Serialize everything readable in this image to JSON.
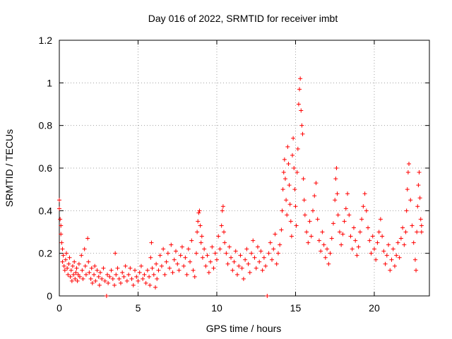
{
  "chart_data": {
    "type": "scatter",
    "title": "Day 016 of 2022, SRMTID for receiver imbt",
    "xlabel": "GPS time / hours",
    "ylabel": "SRMTID / TECUs",
    "xlim": [
      0,
      23.5
    ],
    "ylim": [
      0,
      1.2
    ],
    "xticks": [
      0,
      5,
      10,
      15,
      20
    ],
    "xtick_labels": [
      "0",
      "5",
      "10",
      "15",
      "20"
    ],
    "yticks": [
      0,
      0.2,
      0.4,
      0.6,
      0.8,
      1.0,
      1.2
    ],
    "ytick_labels": [
      "0",
      "0.2",
      "0.4",
      "0.6",
      "0.8",
      "1",
      "1.2"
    ],
    "grid": true,
    "marker": "+",
    "color": "#ff0000",
    "series": [
      {
        "name": "SRMTID",
        "points": [
          [
            0.0,
            0.45
          ],
          [
            0.0,
            0.41
          ],
          [
            0.05,
            0.36
          ],
          [
            0.1,
            0.33
          ],
          [
            0.1,
            0.29
          ],
          [
            0.15,
            0.25
          ],
          [
            0.2,
            0.22
          ],
          [
            0.2,
            0.16
          ],
          [
            0.25,
            0.19
          ],
          [
            0.3,
            0.14
          ],
          [
            0.35,
            0.12
          ],
          [
            0.4,
            0.17
          ],
          [
            0.45,
            0.2
          ],
          [
            0.5,
            0.13
          ],
          [
            0.55,
            0.1
          ],
          [
            0.6,
            0.15
          ],
          [
            0.65,
            0.18
          ],
          [
            0.7,
            0.09
          ],
          [
            0.75,
            0.12
          ],
          [
            0.8,
            0.07
          ],
          [
            0.85,
            0.14
          ],
          [
            0.9,
            0.1
          ],
          [
            0.95,
            0.16
          ],
          [
            1.0,
            0.08
          ],
          [
            1.05,
            0.11
          ],
          [
            1.1,
            0.13
          ],
          [
            1.15,
            0.07
          ],
          [
            1.2,
            0.1
          ],
          [
            1.25,
            0.15
          ],
          [
            1.3,
            0.09
          ],
          [
            1.4,
            0.19
          ],
          [
            1.45,
            0.12
          ],
          [
            1.5,
            0.08
          ],
          [
            1.6,
            0.22
          ],
          [
            1.65,
            0.14
          ],
          [
            1.7,
            0.1
          ],
          [
            1.8,
            0.27
          ],
          [
            1.85,
            0.16
          ],
          [
            1.9,
            0.11
          ],
          [
            2.0,
            0.08
          ],
          [
            2.05,
            0.13
          ],
          [
            2.1,
            0.06
          ],
          [
            2.2,
            0.1
          ],
          [
            2.25,
            0.14
          ],
          [
            2.3,
            0.07
          ],
          [
            2.4,
            0.12
          ],
          [
            2.5,
            0.09
          ],
          [
            2.55,
            0.05
          ],
          [
            2.6,
            0.11
          ],
          [
            2.7,
            0.08
          ],
          [
            2.8,
            0.13
          ],
          [
            2.9,
            0.07
          ],
          [
            3.0,
            0.0
          ],
          [
            3.05,
            0.1
          ],
          [
            3.1,
            0.06
          ],
          [
            3.2,
            0.09
          ],
          [
            3.3,
            0.12
          ],
          [
            3.4,
            0.08
          ],
          [
            3.5,
            0.05
          ],
          [
            3.55,
            0.2
          ],
          [
            3.6,
            0.1
          ],
          [
            3.7,
            0.13
          ],
          [
            3.8,
            0.08
          ],
          [
            3.9,
            0.06
          ],
          [
            4.0,
            0.11
          ],
          [
            4.1,
            0.09
          ],
          [
            4.2,
            0.14
          ],
          [
            4.3,
            0.07
          ],
          [
            4.4,
            0.1
          ],
          [
            4.5,
            0.13
          ],
          [
            4.6,
            0.08
          ],
          [
            4.7,
            0.05
          ],
          [
            4.8,
            0.12
          ],
          [
            4.9,
            0.09
          ],
          [
            5.0,
            0.07
          ],
          [
            5.1,
            0.11
          ],
          [
            5.2,
            0.14
          ],
          [
            5.3,
            0.08
          ],
          [
            5.4,
            0.1
          ],
          [
            5.5,
            0.06
          ],
          [
            5.6,
            0.12
          ],
          [
            5.7,
            0.09
          ],
          [
            5.75,
            0.05
          ],
          [
            5.8,
            0.18
          ],
          [
            5.85,
            0.25
          ],
          [
            5.9,
            0.13
          ],
          [
            6.0,
            0.1
          ],
          [
            6.1,
            0.04
          ],
          [
            6.15,
            0.15
          ],
          [
            6.2,
            0.08
          ],
          [
            6.3,
            0.12
          ],
          [
            6.4,
            0.19
          ],
          [
            6.5,
            0.14
          ],
          [
            6.6,
            0.22
          ],
          [
            6.7,
            0.1
          ],
          [
            6.8,
            0.16
          ],
          [
            6.9,
            0.2
          ],
          [
            7.0,
            0.13
          ],
          [
            7.1,
            0.24
          ],
          [
            7.2,
            0.11
          ],
          [
            7.3,
            0.17
          ],
          [
            7.4,
            0.21
          ],
          [
            7.5,
            0.15
          ],
          [
            7.6,
            0.12
          ],
          [
            7.7,
            0.19
          ],
          [
            7.8,
            0.23
          ],
          [
            7.9,
            0.14
          ],
          [
            8.0,
            0.18
          ],
          [
            8.1,
            0.1
          ],
          [
            8.2,
            0.22
          ],
          [
            8.3,
            0.16
          ],
          [
            8.4,
            0.26
          ],
          [
            8.5,
            0.12
          ],
          [
            8.6,
            0.09
          ],
          [
            8.7,
            0.2
          ],
          [
            8.75,
            0.3
          ],
          [
            8.8,
            0.35
          ],
          [
            8.85,
            0.39
          ],
          [
            8.9,
            0.4
          ],
          [
            8.95,
            0.33
          ],
          [
            9.0,
            0.25
          ],
          [
            9.05,
            0.28
          ],
          [
            9.1,
            0.18
          ],
          [
            9.2,
            0.22
          ],
          [
            9.3,
            0.14
          ],
          [
            9.4,
            0.19
          ],
          [
            9.5,
            0.11
          ],
          [
            9.6,
            0.16
          ],
          [
            9.7,
            0.23
          ],
          [
            9.8,
            0.13
          ],
          [
            9.9,
            0.2
          ],
          [
            10.0,
            0.17
          ],
          [
            10.1,
            0.28
          ],
          [
            10.2,
            0.22
          ],
          [
            10.3,
            0.33
          ],
          [
            10.35,
            0.4
          ],
          [
            10.4,
            0.42
          ],
          [
            10.45,
            0.3
          ],
          [
            10.5,
            0.25
          ],
          [
            10.6,
            0.2
          ],
          [
            10.7,
            0.15
          ],
          [
            10.8,
            0.23
          ],
          [
            10.9,
            0.18
          ],
          [
            11.0,
            0.12
          ],
          [
            11.1,
            0.16
          ],
          [
            11.2,
            0.21
          ],
          [
            11.3,
            0.1
          ],
          [
            11.4,
            0.14
          ],
          [
            11.5,
            0.19
          ],
          [
            11.6,
            0.13
          ],
          [
            11.7,
            0.08
          ],
          [
            11.8,
            0.17
          ],
          [
            11.9,
            0.22
          ],
          [
            12.0,
            0.15
          ],
          [
            12.1,
            0.11
          ],
          [
            12.2,
            0.2
          ],
          [
            12.3,
            0.26
          ],
          [
            12.4,
            0.18
          ],
          [
            12.5,
            0.13
          ],
          [
            12.6,
            0.23
          ],
          [
            12.7,
            0.16
          ],
          [
            12.8,
            0.21
          ],
          [
            12.9,
            0.12
          ],
          [
            13.0,
            0.18
          ],
          [
            13.1,
            0.14
          ],
          [
            13.2,
            0.0
          ],
          [
            13.3,
            0.2
          ],
          [
            13.4,
            0.25
          ],
          [
            13.5,
            0.17
          ],
          [
            13.6,
            0.22
          ],
          [
            13.7,
            0.29
          ],
          [
            13.8,
            0.15
          ],
          [
            13.9,
            0.2
          ],
          [
            14.0,
            0.24
          ],
          [
            14.1,
            0.31
          ],
          [
            14.15,
            0.4
          ],
          [
            14.2,
            0.5
          ],
          [
            14.25,
            0.58
          ],
          [
            14.3,
            0.64
          ],
          [
            14.35,
            0.55
          ],
          [
            14.4,
            0.45
          ],
          [
            14.45,
            0.38
          ],
          [
            14.5,
            0.7
          ],
          [
            14.55,
            0.62
          ],
          [
            14.6,
            0.52
          ],
          [
            14.65,
            0.43
          ],
          [
            14.7,
            0.35
          ],
          [
            14.75,
            0.28
          ],
          [
            14.8,
            0.66
          ],
          [
            14.85,
            0.74
          ],
          [
            14.9,
            0.6
          ],
          [
            14.95,
            0.5
          ],
          [
            15.0,
            0.42
          ],
          [
            15.05,
            0.33
          ],
          [
            15.1,
            0.58
          ],
          [
            15.15,
            0.69
          ],
          [
            15.2,
            0.9
          ],
          [
            15.25,
            0.97
          ],
          [
            15.3,
            1.02
          ],
          [
            15.35,
            0.87
          ],
          [
            15.4,
            0.8
          ],
          [
            15.45,
            0.76
          ],
          [
            15.5,
            0.55
          ],
          [
            15.55,
            0.45
          ],
          [
            15.6,
            0.38
          ],
          [
            15.7,
            0.3
          ],
          [
            15.8,
            0.25
          ],
          [
            15.9,
            0.35
          ],
          [
            16.0,
            0.28
          ],
          [
            16.1,
            0.4
          ],
          [
            16.2,
            0.47
          ],
          [
            16.3,
            0.53
          ],
          [
            16.4,
            0.36
          ],
          [
            16.5,
            0.26
          ],
          [
            16.6,
            0.21
          ],
          [
            16.7,
            0.3
          ],
          [
            16.8,
            0.24
          ],
          [
            16.9,
            0.18
          ],
          [
            17.0,
            0.22
          ],
          [
            17.1,
            0.15
          ],
          [
            17.2,
            0.2
          ],
          [
            17.3,
            0.27
          ],
          [
            17.4,
            0.34
          ],
          [
            17.5,
            0.45
          ],
          [
            17.55,
            0.55
          ],
          [
            17.6,
            0.6
          ],
          [
            17.65,
            0.48
          ],
          [
            17.7,
            0.38
          ],
          [
            17.8,
            0.3
          ],
          [
            17.9,
            0.24
          ],
          [
            18.0,
            0.29
          ],
          [
            18.1,
            0.35
          ],
          [
            18.2,
            0.41
          ],
          [
            18.3,
            0.48
          ],
          [
            18.4,
            0.38
          ],
          [
            18.5,
            0.28
          ],
          [
            18.6,
            0.22
          ],
          [
            18.7,
            0.32
          ],
          [
            18.8,
            0.26
          ],
          [
            18.9,
            0.19
          ],
          [
            19.0,
            0.23
          ],
          [
            19.1,
            0.3
          ],
          [
            19.2,
            0.36
          ],
          [
            19.3,
            0.42
          ],
          [
            19.4,
            0.48
          ],
          [
            19.5,
            0.4
          ],
          [
            19.6,
            0.32
          ],
          [
            19.7,
            0.26
          ],
          [
            19.8,
            0.2
          ],
          [
            19.9,
            0.28
          ],
          [
            20.0,
            0.22
          ],
          [
            20.1,
            0.17
          ],
          [
            20.2,
            0.25
          ],
          [
            20.3,
            0.3
          ],
          [
            20.4,
            0.36
          ],
          [
            20.5,
            0.28
          ],
          [
            20.6,
            0.21
          ],
          [
            20.7,
            0.15
          ],
          [
            20.8,
            0.19
          ],
          [
            20.9,
            0.24
          ],
          [
            21.0,
            0.12
          ],
          [
            21.1,
            0.17
          ],
          [
            21.2,
            0.22
          ],
          [
            21.3,
            0.14
          ],
          [
            21.4,
            0.19
          ],
          [
            21.5,
            0.25
          ],
          [
            21.6,
            0.18
          ],
          [
            21.7,
            0.27
          ],
          [
            21.8,
            0.32
          ],
          [
            21.9,
            0.24
          ],
          [
            22.0,
            0.3
          ],
          [
            22.05,
            0.4
          ],
          [
            22.1,
            0.5
          ],
          [
            22.15,
            0.58
          ],
          [
            22.2,
            0.62
          ],
          [
            22.3,
            0.45
          ],
          [
            22.4,
            0.33
          ],
          [
            22.5,
            0.25
          ],
          [
            22.6,
            0.17
          ],
          [
            22.65,
            0.12
          ],
          [
            22.7,
            0.3
          ],
          [
            22.75,
            0.42
          ],
          [
            22.8,
            0.52
          ],
          [
            22.85,
            0.58
          ],
          [
            22.9,
            0.46
          ],
          [
            22.95,
            0.36
          ],
          [
            23.0,
            0.3
          ],
          [
            23.0,
            0.33
          ]
        ]
      }
    ]
  }
}
